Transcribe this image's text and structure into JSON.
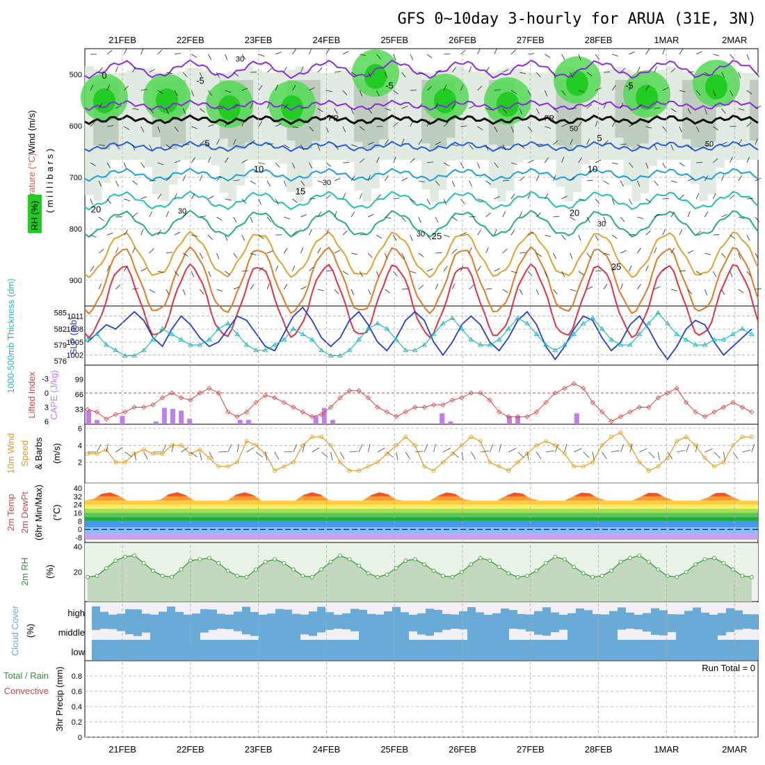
{
  "title": "GFS 0~10day 3-hourly for ARUA (31E, 3N)",
  "dates": [
    "21FEB",
    "22FEB",
    "23FEB",
    "24FEB",
    "25FEB",
    "26FEB",
    "27FEB",
    "28FEB",
    "1MAR",
    "2MAR"
  ],
  "colors": {
    "rh_green": "#22cc22",
    "rh_gray": "#a0b4a0",
    "slp_line": "#1f3fcc",
    "thickness_line": "#22bbbb",
    "lifted_index": "#d84040",
    "cape_bar": "#c27cf0",
    "wind_speed": "#e09a20",
    "rh2m": "#2a9a2a",
    "cloud": "#6aaad6",
    "cloud_light": "#f2f0f5"
  },
  "panels": {
    "upper_air": {
      "ylabel_wind": "Wind (m/s)",
      "ylabel_temp": "Temperature (°C)",
      "ylabel_rh": "RH (%)",
      "ylabel_pressure": "( m i l l i b a r s )",
      "pressure_ticks": [
        "500",
        "600",
        "700",
        "800",
        "900"
      ],
      "freezing_label": "FR",
      "isotherm_labels": [
        "0",
        "-5",
        "-5",
        "-5",
        "5",
        "5",
        "10",
        "10",
        "15",
        "20",
        "20",
        "25",
        "25"
      ],
      "rh_labels": [
        "30",
        "30",
        "30",
        "30",
        "30",
        "50",
        "50"
      ]
    },
    "thickness_slp": {
      "ylabel_left": "1000-500mb Thickness (dm)",
      "ylabel_right": "SLP (mb)",
      "left_ticks": [
        "585",
        "582",
        "579",
        "576"
      ],
      "right_ticks": [
        "1011",
        "1008",
        "1005",
        "1002"
      ]
    },
    "cape_li": {
      "ylabel_left": "Lifted Index",
      "ylabel_right": "CAPE (J/kg)",
      "li_ticks": [
        "-3",
        "0",
        "3",
        "6"
      ],
      "cape_ticks": [
        "99",
        "66",
        "33"
      ]
    },
    "wind10m": {
      "ylabel_1": "10m Wind",
      "ylabel_2": "Speed",
      "ylabel_3": "& Barbs",
      "ylabel_unit": "(m/s)",
      "ticks": [
        "6",
        "4",
        "2"
      ]
    },
    "temp2m": {
      "ylabel_1": "2m Temp",
      "ylabel_2": "2m DewPt",
      "ylabel_3": "(6hr Min/Max)",
      "ylabel_unit": "(°C)",
      "ticks": [
        "40",
        "32",
        "24",
        "16",
        "8",
        "0",
        "-8"
      ]
    },
    "rh2m": {
      "ylabel": "2m RH",
      "unit": "(%)",
      "ticks": [
        "40",
        "20"
      ]
    },
    "cloud": {
      "ylabel": "Cloud Cover",
      "unit": "(%)",
      "levels": [
        "high",
        "middle",
        "low"
      ]
    },
    "precip": {
      "ylabel_1": "Total / Rain",
      "ylabel_2": "Convective",
      "ylabel_3": "3hr Precip (mm)",
      "ticks": [
        "0.8",
        "0.6",
        "0.4",
        "0.2",
        "0"
      ],
      "run_total": "Run Total = 0"
    }
  },
  "chart_data": [
    {
      "type": "line",
      "name": "1000-500mb Thickness / SLP",
      "series": [
        {
          "name": "SLP (mb)",
          "values": [
            1005,
            1007,
            1009,
            1008,
            1010,
            1012,
            1010,
            1006,
            1004,
            1008,
            1011,
            1009,
            1006,
            1004,
            1005,
            1008,
            1011,
            1010,
            1007,
            1004,
            1003,
            1007,
            1011,
            1013,
            1010,
            1006,
            1004,
            1006,
            1010,
            1012,
            1009,
            1005,
            1003,
            1006,
            1010,
            1012,
            1010,
            1005,
            1002,
            1005,
            1009,
            1011,
            1009,
            1005,
            1003,
            1006,
            1010,
            1012,
            1009,
            1004,
            1001,
            1004,
            1008,
            1011,
            1010,
            1006,
            1003,
            1005,
            1009,
            1011,
            1008,
            1004,
            1001,
            1004,
            1008,
            1010,
            1009,
            1005,
            1002,
            1004,
            1006,
            1008
          ]
        },
        {
          "name": "Thickness (dm)",
          "values": [
            580,
            581,
            579,
            578,
            577,
            577,
            578,
            580,
            582,
            581,
            580,
            579,
            579,
            580,
            582,
            583,
            581,
            579,
            578,
            578,
            579,
            580,
            582,
            581,
            580,
            578,
            577,
            577,
            578,
            580,
            582,
            583,
            582,
            580,
            578,
            578,
            579,
            581,
            583,
            584,
            582,
            580,
            579,
            579,
            580,
            582,
            584,
            583,
            581,
            579,
            578,
            579,
            581,
            583,
            584,
            582,
            580,
            579,
            579,
            581,
            583,
            585,
            583,
            581,
            580,
            579,
            579,
            580,
            580,
            581,
            582,
            581
          ]
        }
      ]
    },
    {
      "type": "bar",
      "name": "CAPE (J/kg)",
      "values": [
        25,
        8,
        0,
        0,
        15,
        0,
        0,
        0,
        5,
        30,
        28,
        25,
        10,
        0,
        0,
        0,
        0,
        0,
        8,
        8,
        0,
        0,
        0,
        0,
        0,
        0,
        0,
        15,
        30,
        8,
        0,
        0,
        0,
        0,
        0,
        0,
        0,
        0,
        0,
        0,
        0,
        0,
        20,
        5,
        0,
        0,
        0,
        0,
        0,
        0,
        15,
        15,
        0,
        0,
        0,
        0,
        0,
        0,
        20,
        0,
        0,
        0,
        0,
        0,
        0,
        0,
        0,
        0,
        0,
        0,
        0,
        0,
        0,
        0,
        0,
        0,
        0,
        0,
        0,
        0,
        0,
        0,
        0,
        0,
        0,
        0,
        0,
        0,
        0,
        0,
        0,
        0,
        0,
        0,
        0,
        0,
        0,
        0,
        0,
        0,
        0,
        0,
        0,
        0,
        0,
        0,
        0,
        0,
        0,
        0,
        0,
        0,
        0,
        0,
        0,
        0,
        0,
        0,
        0,
        0,
        0,
        0,
        0,
        0,
        0,
        0,
        0,
        0,
        0,
        0,
        0,
        0,
        0,
        0,
        0,
        0,
        0,
        0,
        0,
        0,
        0,
        0,
        0,
        0,
        0,
        0,
        0,
        0,
        0,
        0,
        0,
        0,
        0,
        0,
        0,
        0,
        0,
        0,
        0,
        0,
        0,
        0,
        0,
        0,
        0,
        0,
        0,
        0,
        0,
        0,
        0,
        0,
        0,
        0,
        0,
        0,
        0,
        0,
        0,
        0,
        0,
        0,
        0,
        0,
        0,
        0,
        0,
        0,
        0,
        0,
        0,
        0,
        0,
        0,
        0,
        0,
        0,
        0,
        0,
        0,
        0,
        0,
        0,
        0,
        0,
        0,
        0,
        0,
        0,
        0,
        0,
        0,
        0,
        0,
        0,
        0,
        0
      ]
    },
    {
      "type": "line",
      "name": "Lifted Index",
      "values": [
        3.5,
        4,
        5.5,
        4.5,
        4,
        3,
        3,
        2.5,
        1,
        0,
        1,
        1.5,
        0,
        -1,
        0,
        4,
        5,
        4,
        2,
        0.5,
        1,
        2,
        3,
        4,
        5,
        4.5,
        3,
        1,
        -0.5,
        -0.5,
        1,
        3,
        4,
        5,
        4,
        3,
        3,
        2.5,
        2.5,
        1.5,
        1,
        0,
        0,
        1.5,
        4,
        5,
        5,
        5,
        4,
        2,
        0,
        -1,
        -2,
        -1,
        2,
        4,
        6,
        5,
        4,
        3,
        3,
        1,
        0,
        -1,
        2,
        4,
        5,
        4,
        3,
        2,
        3,
        4
      ]
    },
    {
      "type": "line",
      "name": "10m Wind Speed (m/s)",
      "values": [
        3,
        3,
        3.5,
        2,
        2,
        3,
        3.5,
        3,
        3,
        4,
        4,
        3,
        3.5,
        2.5,
        1.5,
        1.5,
        2,
        4.5,
        4,
        3,
        1,
        1.5,
        2,
        4,
        5,
        5,
        4,
        2,
        1,
        1,
        1.5,
        2,
        3,
        4,
        5,
        4,
        1.5,
        1,
        2,
        3,
        4,
        5,
        4.5,
        2,
        1.5,
        1,
        2,
        3,
        4,
        4.5,
        4,
        3,
        1.5,
        1.5,
        2,
        4,
        5,
        5.5,
        4,
        2,
        1,
        1.5,
        2.5,
        4.5,
        5,
        4,
        2.5,
        1.5,
        2,
        4,
        5,
        5
      ]
    },
    {
      "type": "line",
      "name": "2m RH (%)",
      "values": [
        16,
        17,
        23,
        29,
        32,
        33,
        27,
        21,
        17,
        16,
        22,
        29,
        30,
        31,
        27,
        21,
        17,
        16,
        22,
        28,
        30,
        27,
        22,
        17,
        16,
        22,
        28,
        33,
        30,
        25,
        19,
        16,
        18,
        23,
        29,
        30,
        26,
        21,
        17,
        16,
        20,
        26,
        31,
        29,
        24,
        19,
        16,
        17,
        21,
        27,
        32,
        30,
        24,
        19,
        16,
        17,
        21,
        28,
        31,
        33,
        28,
        22,
        17,
        16,
        20,
        26,
        30,
        31,
        27,
        22,
        17,
        16
      ]
    }
  ]
}
